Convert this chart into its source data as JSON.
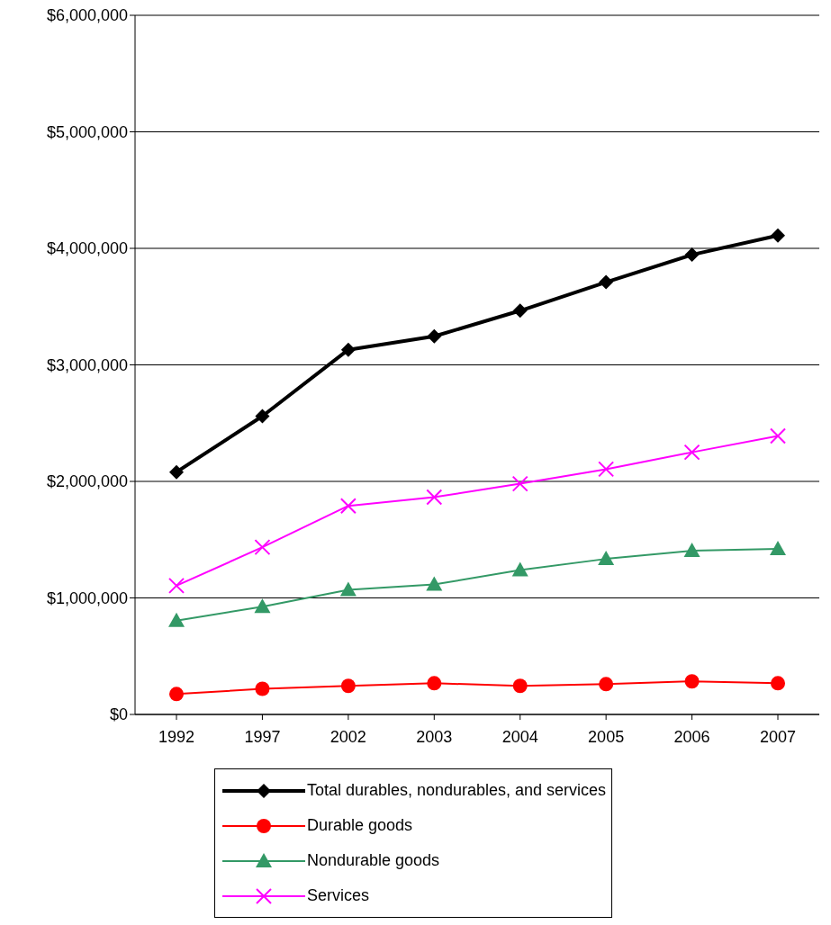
{
  "chart_data": {
    "type": "line",
    "categories": [
      "1992",
      "1997",
      "2002",
      "2003",
      "2004",
      "2005",
      "2006",
      "2007"
    ],
    "series": [
      {
        "name": "Total durables, nondurables, and services",
        "color": "#000000",
        "marker": "diamond",
        "values": [
          2080000,
          2560000,
          3130000,
          3245000,
          3465000,
          3710000,
          3945000,
          4110000
        ]
      },
      {
        "name": "Durable goods",
        "color": "#ff0000",
        "marker": "circle",
        "values": [
          175000,
          220000,
          245000,
          268000,
          245000,
          260000,
          284000,
          268000
        ]
      },
      {
        "name": "Nondurable goods",
        "color": "#339966",
        "marker": "triangle",
        "values": [
          805000,
          925000,
          1070000,
          1115000,
          1240000,
          1335000,
          1405000,
          1420000
        ]
      },
      {
        "name": "Services",
        "color": "#ff00ff",
        "marker": "cross",
        "values": [
          1105000,
          1435000,
          1790000,
          1865000,
          1980000,
          2105000,
          2250000,
          2390000
        ]
      }
    ],
    "ylim": [
      0,
      6000000
    ],
    "yticks": [
      {
        "value": 0,
        "label": "$0"
      },
      {
        "value": 1000000,
        "label": "$1,000,000"
      },
      {
        "value": 2000000,
        "label": "$2,000,000"
      },
      {
        "value": 3000000,
        "label": "$3,000,000"
      },
      {
        "value": 4000000,
        "label": "$4,000,000"
      },
      {
        "value": 5000000,
        "label": "$5,000,000"
      },
      {
        "value": 6000000,
        "label": "$6,000,000"
      }
    ],
    "grid": "y",
    "legend": "bottom",
    "line_style": "solid"
  }
}
